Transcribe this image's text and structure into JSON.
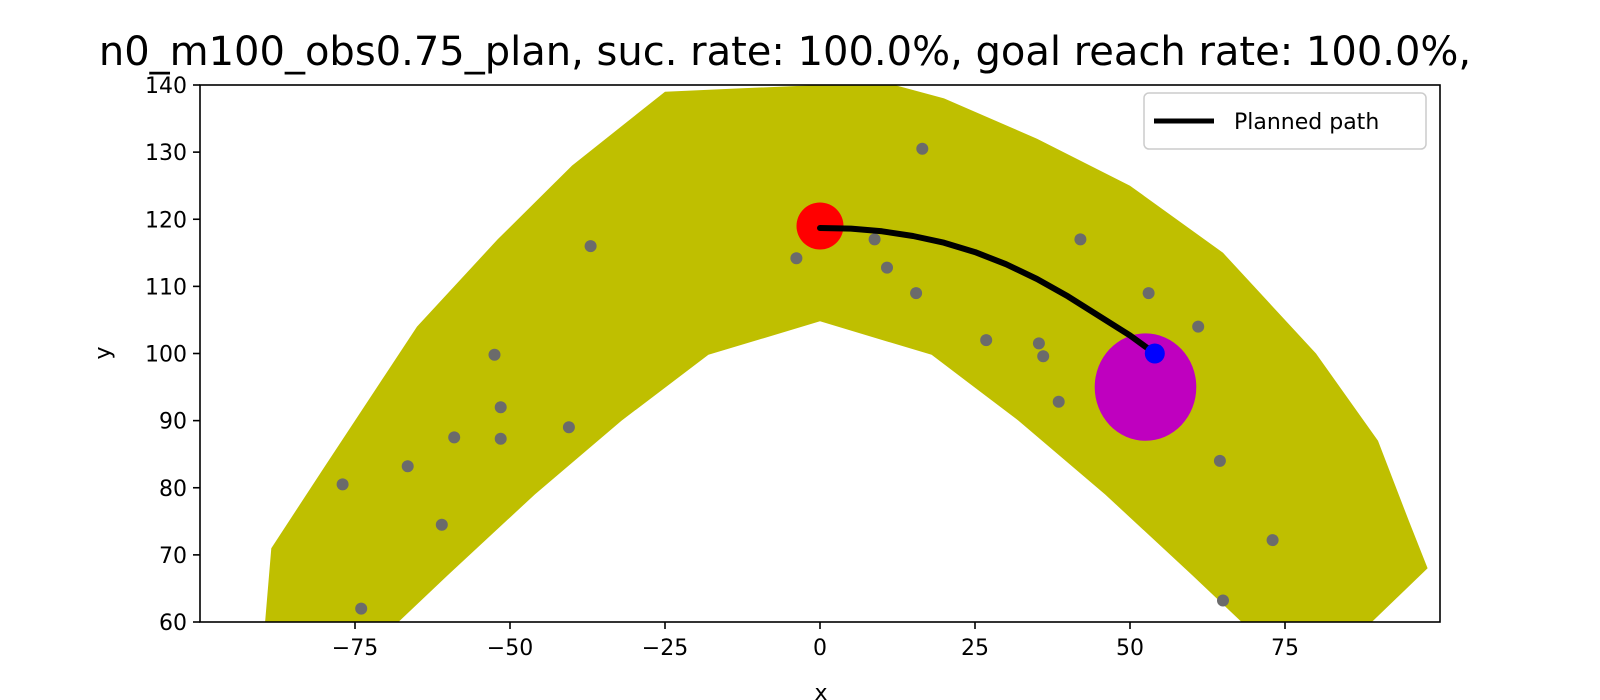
{
  "chart_data": {
    "type": "scatter",
    "title": "n0_m100_obs0.75_plan, suc. rate: 100.0%, goal reach rate: 100.0%,",
    "xlabel": "x",
    "ylabel": "y",
    "xlim": [
      -100,
      100
    ],
    "ylim": [
      60,
      140
    ],
    "xticks": [
      -75,
      -50,
      -25,
      0,
      25,
      50,
      75
    ],
    "yticks": [
      60,
      70,
      80,
      90,
      100,
      110,
      120,
      130,
      140
    ],
    "grid": false,
    "legend": {
      "placement": "top-right",
      "entries": [
        "Planned path"
      ]
    },
    "colors": {
      "corridor": "#bfbf00",
      "path": "#000000",
      "obstacles": "#6b6b6b",
      "start": "#ff0000",
      "goal_region": "#bf00bf",
      "end_point": "#0000ff"
    },
    "corridor": {
      "outer": [
        [
          -89.5,
          60
        ],
        [
          -88.5,
          71
        ],
        [
          -80,
          83
        ],
        [
          -70,
          97
        ],
        [
          -65,
          104
        ],
        [
          -52,
          117
        ],
        [
          -40,
          128
        ],
        [
          -25,
          139
        ],
        [
          -13,
          139.5
        ],
        [
          0,
          140
        ],
        [
          12,
          140
        ],
        [
          20,
          138
        ],
        [
          35,
          132
        ],
        [
          50,
          125
        ],
        [
          65,
          115
        ],
        [
          80,
          100
        ],
        [
          90,
          87
        ],
        [
          95,
          75
        ],
        [
          98,
          68
        ],
        [
          89,
          60
        ]
      ],
      "inner": [
        [
          -68,
          60
        ],
        [
          -60,
          67
        ],
        [
          -46,
          79
        ],
        [
          -32,
          90
        ],
        [
          -18,
          99.8
        ],
        [
          0,
          104.8
        ],
        [
          18,
          99.8
        ],
        [
          32,
          90
        ],
        [
          46,
          79
        ],
        [
          60,
          67
        ],
        [
          68,
          60
        ]
      ]
    },
    "obstacles": [
      [
        -77,
        80.5
      ],
      [
        -74,
        62
      ],
      [
        -66.5,
        83.2
      ],
      [
        -61,
        74.5
      ],
      [
        -59,
        87.5
      ],
      [
        -52.5,
        99.8
      ],
      [
        -51.5,
        92
      ],
      [
        -51.5,
        87.3
      ],
      [
        -40.5,
        89
      ],
      [
        -37,
        116
      ],
      [
        -3.8,
        114.2
      ],
      [
        8.8,
        117
      ],
      [
        10.8,
        112.8
      ],
      [
        16.5,
        130.5
      ],
      [
        15.5,
        109
      ],
      [
        26.8,
        102
      ],
      [
        35.3,
        101.5
      ],
      [
        36,
        99.6
      ],
      [
        38.5,
        92.8
      ],
      [
        42,
        117
      ],
      [
        53,
        109
      ],
      [
        61,
        104
      ],
      [
        64.5,
        84
      ],
      [
        65,
        63.2
      ],
      [
        73,
        72.2
      ]
    ],
    "planned_path": [
      [
        0,
        118.7
      ],
      [
        5,
        118.6
      ],
      [
        10,
        118.2
      ],
      [
        15,
        117.5
      ],
      [
        20,
        116.5
      ],
      [
        25,
        115.1
      ],
      [
        30,
        113.3
      ],
      [
        35,
        111.1
      ],
      [
        40,
        108.5
      ],
      [
        45,
        105.6
      ],
      [
        50,
        102.7
      ],
      [
        54,
        100
      ]
    ],
    "start": {
      "x": 0,
      "y": 119,
      "r": 3.5
    },
    "goal_region": {
      "cx": 52.5,
      "cy": 95,
      "rx": 8.2,
      "ry": 8
    },
    "end_point": {
      "x": 54,
      "y": 100
    }
  }
}
